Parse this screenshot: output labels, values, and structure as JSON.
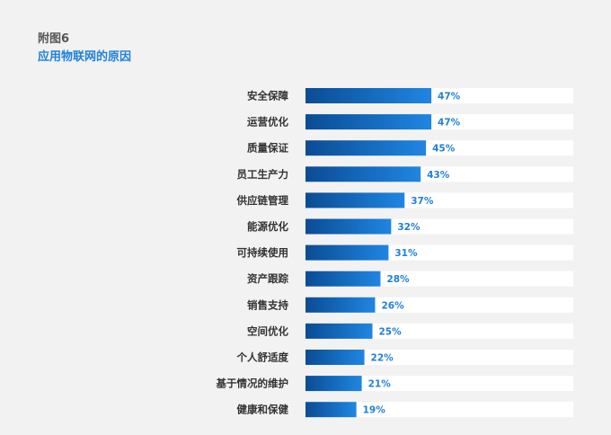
{
  "figure": {
    "label": "附图6",
    "title": "应用物联网的原因"
  },
  "colors": {
    "bar_start": "#0a4c94",
    "bar_end": "#1f86e2",
    "track": "#ffffff",
    "value_text": "#1f80d8",
    "background": "#f2f2f2"
  },
  "chart_data": {
    "type": "bar",
    "orientation": "horizontal",
    "categories": [
      "安全保障",
      "运营优化",
      "质量保证",
      "员工生产力",
      "供应链管理",
      "能源优化",
      "可持续使用",
      "资产跟踪",
      "销售支持",
      "空间优化",
      "个人舒适度",
      "基于情况的维护",
      "健康和保健"
    ],
    "values": [
      47,
      47,
      45,
      43,
      37,
      32,
      31,
      28,
      26,
      25,
      22,
      21,
      19
    ],
    "value_labels": [
      "47%",
      "47%",
      "45%",
      "43%",
      "37%",
      "32%",
      "31%",
      "28%",
      "26%",
      "25%",
      "22%",
      "21%",
      "19%"
    ],
    "unit": "%",
    "xlim": [
      0,
      100
    ],
    "grid": false,
    "legend": "none"
  }
}
